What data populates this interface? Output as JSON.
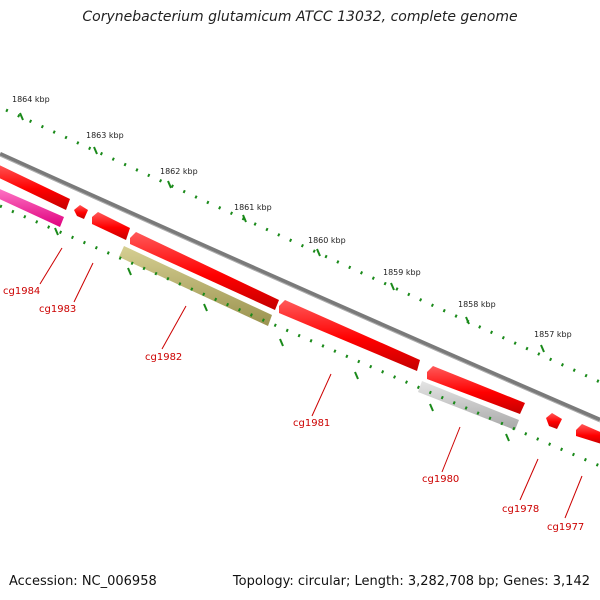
{
  "title": "Corynebacterium glutamicum ATCC 13032, complete genome",
  "accession_text": "Accession: NC_006958",
  "summary_text": "Topology: circular; Length: 3,282,708 bp; Genes: 3,142",
  "colors": {
    "backbone": "#808080",
    "tick": "#1a8a1a",
    "gene_red": "#ff0000",
    "gene_magenta": "#ff1aa0",
    "gene_olive": "#b5ad6a",
    "gene_gray": "#c0c0c0",
    "label": "#cc0000"
  },
  "scale_labels": [
    "1864 kbp",
    "1863 kbp",
    "1862 kbp",
    "1861 kbp",
    "1860 kbp",
    "1859 kbp",
    "1858 kbp",
    "1857 kbp"
  ],
  "genes": [
    "cg1984",
    "cg1983",
    "cg1982",
    "cg1981",
    "cg1980",
    "cg1978",
    "cg1977"
  ]
}
